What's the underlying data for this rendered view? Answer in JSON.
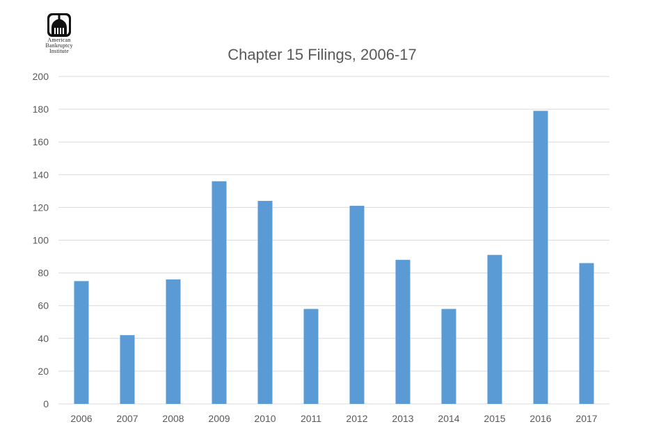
{
  "logo": {
    "lines": [
      "American",
      "Bankruptcy",
      "Institute"
    ],
    "icon": "capitol-dome-icon"
  },
  "chart_data": {
    "type": "bar",
    "title": "Chapter 15 Filings, 2006-17",
    "xlabel": "",
    "ylabel": "",
    "categories": [
      "2006",
      "2007",
      "2008",
      "2009",
      "2010",
      "2011",
      "2012",
      "2013",
      "2014",
      "2015",
      "2016",
      "2017"
    ],
    "values": [
      75,
      42,
      76,
      136,
      124,
      58,
      121,
      88,
      58,
      91,
      179,
      86
    ],
    "ylim": [
      0,
      200
    ],
    "yticks": [
      0,
      20,
      40,
      60,
      80,
      100,
      120,
      140,
      160,
      180,
      200
    ],
    "grid": true,
    "legend": "none",
    "colors": {
      "bar": "#5b9bd5",
      "grid": "#d9d9d9",
      "text": "#595959",
      "title": "#595959"
    }
  }
}
